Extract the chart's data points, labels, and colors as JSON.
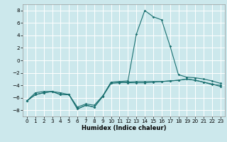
{
  "title": "",
  "xlabel": "Humidex (Indice chaleur)",
  "xlim": [
    -0.5,
    23.5
  ],
  "ylim": [
    -9,
    9
  ],
  "yticks": [
    -8,
    -6,
    -4,
    -2,
    0,
    2,
    4,
    6,
    8
  ],
  "xticks": [
    0,
    1,
    2,
    3,
    4,
    5,
    6,
    7,
    8,
    9,
    10,
    11,
    12,
    13,
    14,
    15,
    16,
    17,
    18,
    19,
    20,
    21,
    22,
    23
  ],
  "background_color": "#cce8ec",
  "grid_color": "#ffffff",
  "line_color": "#1a7070",
  "line1_x": [
    0,
    1,
    2,
    3,
    4,
    5,
    6,
    7,
    8,
    9,
    10,
    11,
    12,
    13,
    14,
    15,
    16,
    17,
    18,
    19,
    20,
    21,
    22,
    23
  ],
  "line1_y": [
    -6.5,
    -5.2,
    -5.0,
    -5.0,
    -5.2,
    -5.5,
    -7.5,
    -7.0,
    -7.2,
    -5.7,
    -3.5,
    -3.5,
    -3.6,
    -3.6,
    -3.6,
    -3.5,
    -3.4,
    -3.3,
    -3.2,
    -3.0,
    -3.2,
    -3.5,
    -3.9,
    -4.0
  ],
  "line2_x": [
    0,
    1,
    2,
    3,
    4,
    5,
    6,
    7,
    8,
    9,
    10,
    11,
    12,
    13,
    14,
    15,
    16,
    17,
    18,
    19,
    20,
    21,
    22,
    23
  ],
  "line2_y": [
    -6.5,
    -5.5,
    -5.2,
    -5.0,
    -5.5,
    -5.5,
    -7.8,
    -7.2,
    -7.5,
    -5.8,
    -3.5,
    -3.4,
    -3.3,
    4.2,
    8.0,
    7.0,
    6.5,
    2.3,
    -2.3,
    -2.7,
    -2.8,
    -3.0,
    -3.3,
    -3.7
  ],
  "line3_x": [
    0,
    1,
    2,
    3,
    4,
    5,
    6,
    7,
    8,
    9,
    10,
    11,
    12,
    13,
    14,
    15,
    16,
    17,
    18,
    19,
    20,
    21,
    22,
    23
  ],
  "line3_y": [
    -6.5,
    -5.5,
    -5.2,
    -5.0,
    -5.5,
    -5.5,
    -7.8,
    -7.2,
    -7.5,
    -5.8,
    -3.7,
    -3.6,
    -3.5,
    -3.4,
    -3.4,
    -3.4,
    -3.4,
    -3.3,
    -3.2,
    -3.0,
    -3.2,
    -3.5,
    -3.8,
    -4.2
  ],
  "xlabel_fontsize": 6.0,
  "tick_fontsize": 5.2
}
